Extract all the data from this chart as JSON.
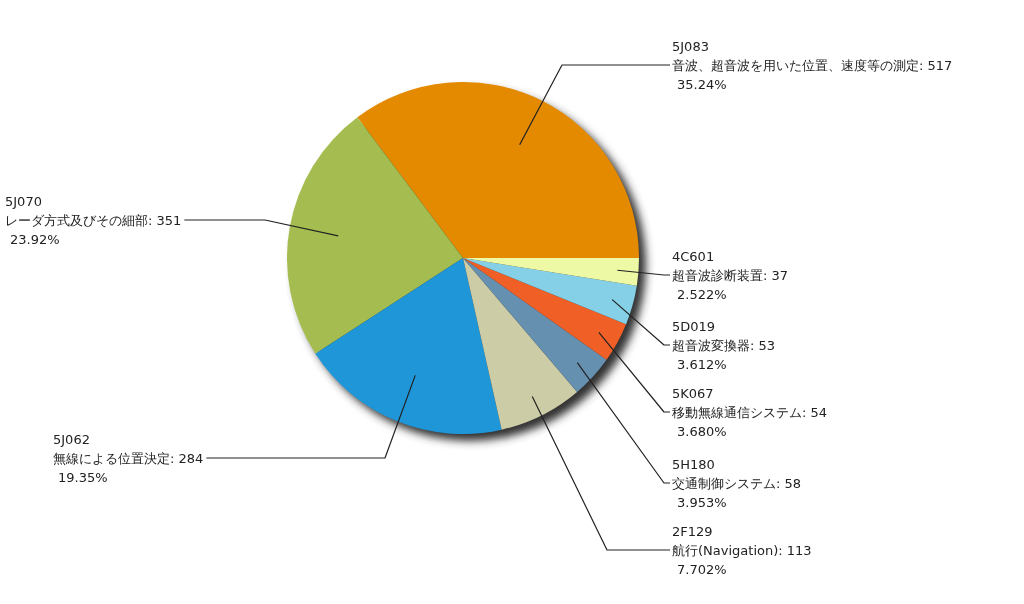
{
  "chart_data": {
    "type": "pie",
    "categories": [
      "5J083\n音波、超音波を用いた位置、速度等の測定",
      "5J070\nレーダ方式及びその細部",
      "5J062\n無線による位置決定",
      "2F129\n航行(Navigation)",
      "5H180\n交通制御システム",
      "5K067\n移動無線通信システム",
      "5D019\n超音波変換器",
      "4C601\n超音波診断装置"
    ],
    "values": [
      517,
      351,
      284,
      113,
      58,
      54,
      53,
      37
    ],
    "value_labels": [
      "517\n35.24%",
      "351\n23.92%",
      "284\n19.35%",
      "113\n7.702%",
      "58\n3.953%",
      "54\n3.680%",
      "53\n3.612%",
      "37\n2.522%"
    ],
    "colors": [
      "#e38a00",
      "#a5bd50",
      "#1e96d8",
      "#cccca6",
      "#6690b0",
      "#f06026",
      "#85d0e6",
      "#eef9a5"
    ]
  }
}
